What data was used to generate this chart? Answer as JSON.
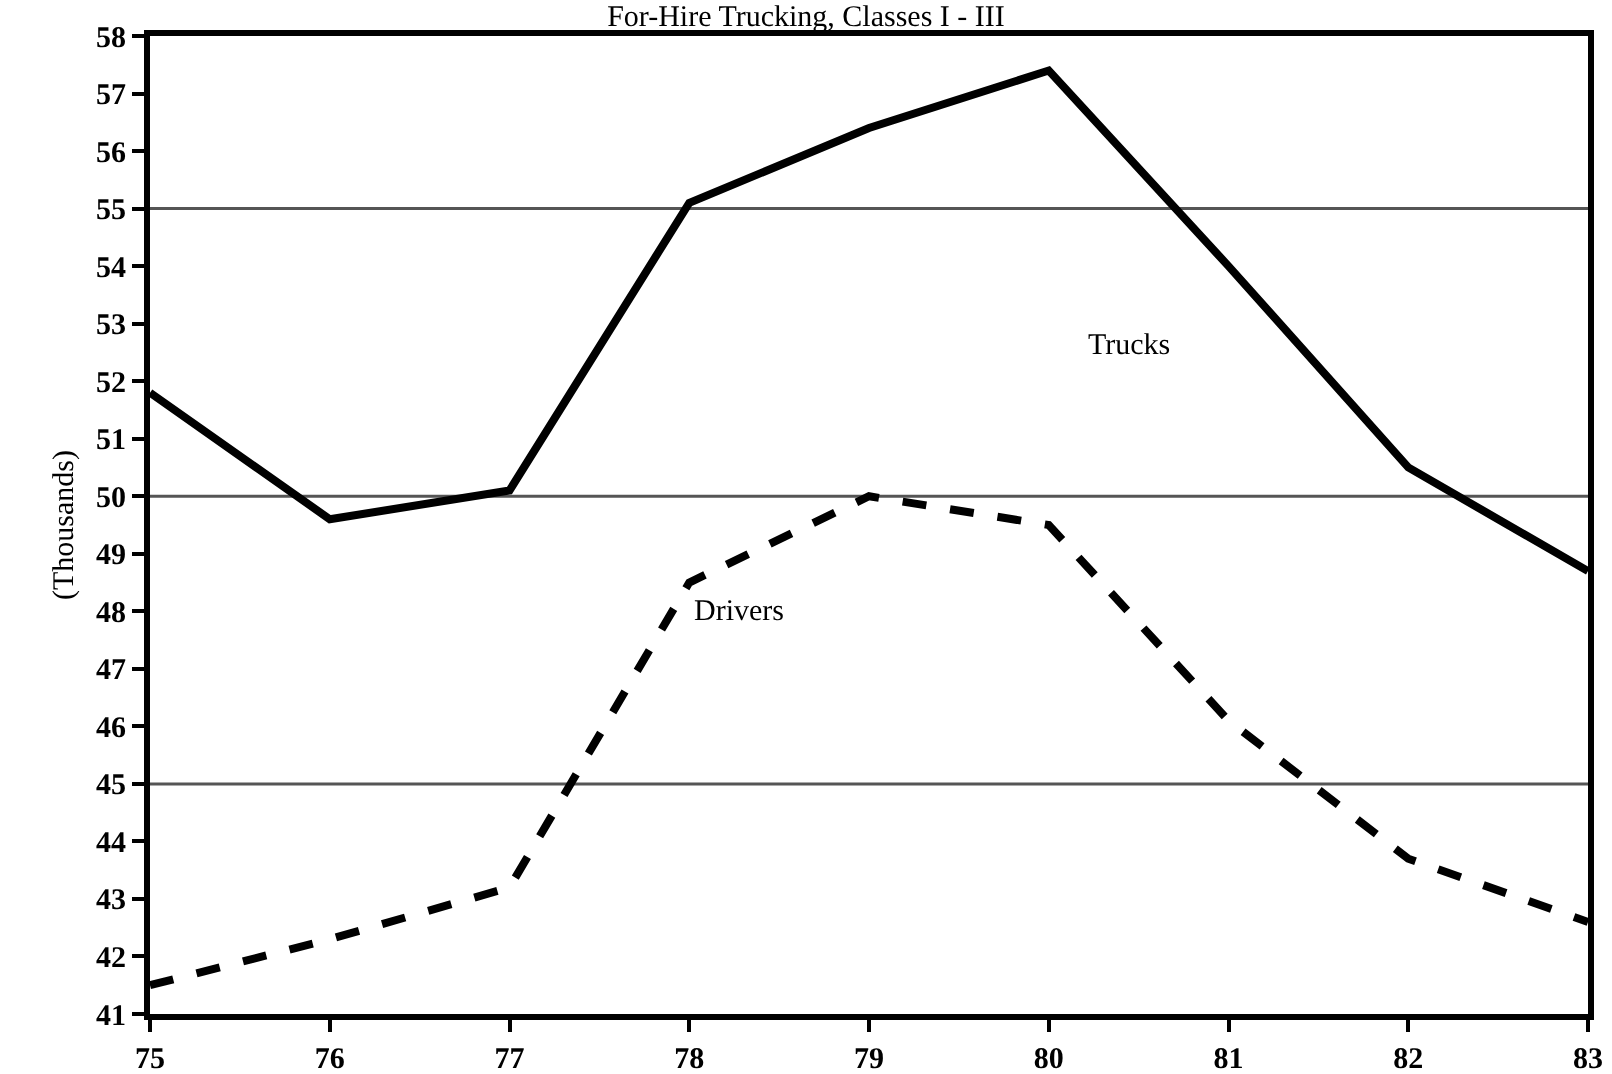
{
  "chart_data": {
    "type": "line",
    "title": "For-Hire Trucking, Classes I - III",
    "ylabel": "(Thousands)",
    "x": [
      75,
      76,
      77,
      78,
      79,
      80,
      81,
      82,
      83
    ],
    "series": [
      {
        "name": "Trucks",
        "color": "#000000",
        "line_style": "solid",
        "values": [
          51.8,
          49.6,
          50.1,
          55.1,
          56.4,
          57.4,
          54.0,
          50.5,
          48.7
        ]
      },
      {
        "name": "Drivers",
        "color": "#000000",
        "line_style": "dashed",
        "values": [
          41.5,
          42.3,
          43.2,
          48.5,
          50.0,
          49.5,
          46.1,
          43.7,
          42.6
        ]
      }
    ],
    "xlim": [
      75,
      83
    ],
    "xticks": [
      75,
      76,
      77,
      78,
      79,
      80,
      81,
      82,
      83
    ],
    "ylim": [
      41,
      58
    ],
    "yticks": [
      41,
      42,
      43,
      44,
      45,
      46,
      47,
      48,
      49,
      50,
      51,
      52,
      53,
      54,
      55,
      56,
      57,
      58
    ],
    "ref_lines": [
      {
        "axis": "y",
        "value": 45
      },
      {
        "axis": "y",
        "value": 50
      },
      {
        "axis": "y",
        "value": 55
      }
    ],
    "grid": false,
    "legend": false,
    "marker": "none"
  }
}
